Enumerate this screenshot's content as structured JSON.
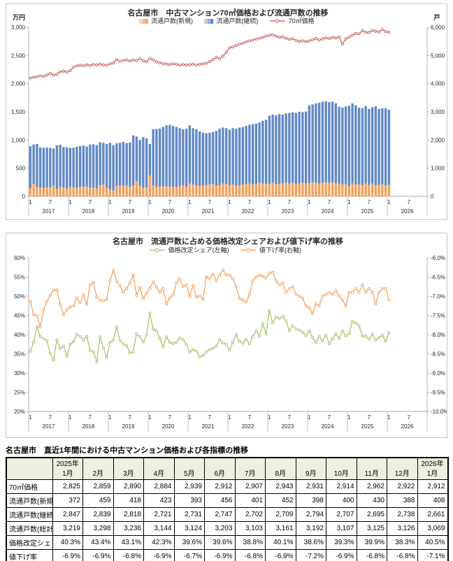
{
  "charts": [
    {
      "title": "名古屋市　中古マンション70㎡価格および流通戸数の推移",
      "legend": [
        {
          "label": "流通戸数(新規)",
          "color": "#F5A05A",
          "type": "bar"
        },
        {
          "label": "流通戸数(継続)",
          "color": "#6189C6",
          "type": "bar"
        },
        {
          "label": "70㎡価格",
          "color": "#C0504D",
          "type": "line"
        }
      ]
    },
    {
      "title": "名古屋市　流通戸数に占める価格改定シェアおよび値下げ率の推移",
      "legend": [
        {
          "label": "価格改定シェア(左軸)",
          "color": "#9BBB59",
          "type": "line"
        },
        {
          "label": "値下げ率(右軸)",
          "color": "#F79646",
          "type": "line"
        }
      ]
    }
  ],
  "chart_data": [
    {
      "type": "bar",
      "title": "名古屋市　中古マンション70㎡価格および流通戸数の推移",
      "x_start": "2017-01",
      "x_interval": "month",
      "x_years": [
        "2017",
        "2018",
        "2019",
        "2020",
        "2021",
        "2022",
        "2023",
        "2024",
        "2025",
        "2026"
      ],
      "x_month_ticks": [
        "1",
        "7"
      ],
      "left_axis": {
        "unit": "万円",
        "min": 0,
        "max": 3000,
        "step": 500,
        "format": "num"
      },
      "right_axis": {
        "unit": "戸",
        "min": 0,
        "max": 6000,
        "step": 1000,
        "format": "num"
      },
      "grid": false,
      "legend_position": "top",
      "series": [
        {
          "name": "流通戸数(新規)",
          "type": "bar",
          "stack": "units",
          "axis": "right",
          "color": "#F5A05A",
          "values": [
            300,
            438,
            330,
            308,
            298,
            312,
            322,
            378,
            262,
            340,
            318,
            282,
            336,
            318,
            298,
            338,
            330,
            348,
            298,
            312,
            288,
            398,
            418,
            302,
            242,
            202,
            358,
            378,
            362,
            380,
            338,
            382,
            540,
            378,
            302,
            318,
            738,
            382,
            338,
            358,
            342,
            362,
            352,
            338,
            332,
            362,
            378,
            342,
            458,
            418,
            378,
            362,
            378,
            398,
            418,
            438,
            382,
            398,
            458,
            438,
            398,
            418,
            382,
            398,
            418,
            438,
            458,
            418,
            438,
            478,
            458,
            438,
            438,
            478,
            422,
            438,
            458,
            478,
            458,
            478,
            438,
            458,
            478,
            458,
            462,
            498,
            478,
            458,
            478,
            498,
            478,
            498,
            462,
            438,
            422,
            438,
            372,
            459,
            418,
            423,
            393,
            456,
            401,
            452,
            398,
            400,
            430,
            388,
            408
          ]
        },
        {
          "name": "流通戸数(継続)",
          "type": "bar",
          "stack": "units",
          "axis": "right",
          "color": "#6189C6",
          "values": [
            1480,
            1402,
            1530,
            1422,
            1422,
            1418,
            1398,
            1322,
            1548,
            1490,
            1432,
            1458,
            1384,
            1412,
            1462,
            1452,
            1470,
            1422,
            1542,
            1538,
            1532,
            1522,
            1482,
            1558,
            1658,
            1618,
            1522,
            1522,
            1568,
            1510,
            1572,
            1778,
            1580,
            1622,
            1798,
            1742,
            1122,
            1998,
            2042,
            2042,
            2118,
            2158,
            2188,
            2162,
            2128,
            2058,
            2002,
            2058,
            2062,
            2002,
            2002,
            1938,
            1882,
            1842,
            1842,
            1842,
            1938,
            2002,
            1982,
            1982,
            1962,
            2002,
            2018,
            2042,
            2042,
            2062,
            2082,
            2142,
            2142,
            2142,
            2222,
            2282,
            2422,
            2422,
            2458,
            2482,
            2442,
            2462,
            2502,
            2502,
            2522,
            2542,
            2512,
            2552,
            2758,
            2762,
            2822,
            2862,
            2882,
            2872,
            2862,
            2862,
            2838,
            2742,
            2728,
            2752,
            2847,
            2839,
            2818,
            2721,
            2731,
            2747,
            2702,
            2709,
            2794,
            2707,
            2695,
            2738,
            2661
          ]
        },
        {
          "name": "70㎡価格",
          "type": "line",
          "axis": "left",
          "color": "#C0504D",
          "values": [
            2100,
            2112,
            2121,
            2138,
            2130,
            2155,
            2178,
            2152,
            2168,
            2210,
            2222,
            2205,
            2232,
            2290,
            2315,
            2328,
            2318,
            2332,
            2322,
            2340,
            2330,
            2345,
            2332,
            2328,
            2352,
            2366,
            2428,
            2398,
            2412,
            2420,
            2402,
            2418,
            2408,
            2442,
            2405,
            2388,
            2448,
            2420,
            2388,
            2368,
            2355,
            2345,
            2338,
            2352,
            2342,
            2328,
            2338,
            2332,
            2336,
            2344,
            2330,
            2342,
            2352,
            2362,
            2388,
            2428,
            2462,
            2442,
            2488,
            2558,
            2635,
            2652,
            2678,
            2702,
            2718,
            2742,
            2758,
            2772,
            2792,
            2805,
            2822,
            2845,
            2858,
            2868,
            2842,
            2822,
            2832,
            2805,
            2785,
            2795,
            2768,
            2748,
            2758,
            2742,
            2758,
            2778,
            2798,
            2775,
            2792,
            2812,
            2798,
            2822,
            2812,
            2832,
            2700,
            2792,
            2825,
            2859,
            2890,
            2884,
            2939,
            2912,
            2907,
            2943,
            2931,
            2914,
            2962,
            2922,
            2912
          ]
        }
      ]
    },
    {
      "type": "line",
      "title": "名古屋市　流通戸数に占める価格改定シェアおよび値下げ率の推移",
      "x_start": "2017-01",
      "x_interval": "month",
      "x_years": [
        "2017",
        "2018",
        "2019",
        "2020",
        "2021",
        "2022",
        "2023",
        "2024",
        "2025",
        "2026"
      ],
      "x_month_ticks": [
        "1",
        "7"
      ],
      "left_axis": {
        "unit": "",
        "min": 20,
        "max": 60,
        "step": 5,
        "format": "pct0"
      },
      "right_axis": {
        "unit": "",
        "min": -10,
        "max": -6,
        "step": 0.5,
        "format": "pct1"
      },
      "grid": false,
      "legend_position": "top",
      "series": [
        {
          "name": "価格改定シェア(左軸)",
          "type": "line",
          "axis": "left",
          "color": "#9BBB59",
          "values": [
            35.7,
            38.0,
            42.1,
            39.5,
            39.0,
            38.4,
            35.1,
            33.4,
            38.6,
            36.4,
            37.0,
            34.4,
            37.5,
            38.1,
            40.1,
            39.5,
            38.6,
            39.5,
            35.9,
            35.6,
            32.9,
            39.4,
            36.5,
            34.1,
            38.0,
            38.6,
            42.0,
            38.5,
            37.5,
            37.1,
            35.2,
            35.6,
            40.2,
            39.4,
            38.1,
            40.0,
            45.6,
            41.4,
            41.0,
            39.0,
            36.8,
            39.4,
            38.0,
            37.7,
            38.0,
            39.1,
            38.7,
            37.4,
            35.5,
            36.1,
            35.7,
            34.2,
            34.6,
            35.5,
            36.1,
            36.4,
            37.0,
            38.8,
            37.9,
            37.4,
            36.0,
            38.0,
            40.0,
            38.3,
            37.8,
            38.8,
            37.6,
            39.5,
            41.0,
            39.6,
            42.8,
            40.2,
            46.2,
            43.0,
            44.6,
            44.2,
            44.8,
            43.6,
            41.0,
            42.3,
            41.5,
            41.2,
            40.6,
            39.8,
            41.0,
            39.3,
            38.0,
            39.6,
            38.4,
            39.9,
            37.6,
            38.9,
            40.2,
            39.0,
            41.0,
            39.7,
            40.3,
            43.4,
            43.1,
            42.3,
            39.6,
            39.6,
            38.8,
            40.1,
            38.6,
            39.3,
            39.9,
            38.3,
            40.5
          ]
        },
        {
          "name": "値下げ率(右軸)",
          "type": "line",
          "axis": "right",
          "color": "#F79646",
          "values": [
            -7.14,
            -7.48,
            -7.5,
            -7.8,
            -7.35,
            -7.14,
            -6.97,
            -6.84,
            -6.83,
            -7.22,
            -7.48,
            -7.35,
            -7.28,
            -7.25,
            -7.04,
            -7.17,
            -6.97,
            -7.21,
            -6.7,
            -6.65,
            -7.02,
            -7.1,
            -7.12,
            -7.08,
            -6.6,
            -6.32,
            -6.6,
            -6.72,
            -6.9,
            -6.8,
            -6.65,
            -6.45,
            -6.98,
            -6.78,
            -7.06,
            -6.92,
            -6.8,
            -6.62,
            -6.76,
            -6.9,
            -6.8,
            -7.2,
            -7.04,
            -6.97,
            -6.65,
            -6.55,
            -6.75,
            -6.7,
            -7.0,
            -6.72,
            -7.02,
            -7.0,
            -7.08,
            -6.5,
            -6.55,
            -6.42,
            -6.6,
            -6.45,
            -6.32,
            -6.45,
            -6.45,
            -6.55,
            -6.75,
            -7.05,
            -7.1,
            -7.15,
            -6.95,
            -6.6,
            -6.5,
            -6.45,
            -6.48,
            -6.52,
            -6.4,
            -6.38,
            -6.6,
            -6.7,
            -6.65,
            -6.9,
            -6.8,
            -6.75,
            -6.95,
            -7.0,
            -7.05,
            -7.25,
            -7.3,
            -7.45,
            -7.2,
            -7.25,
            -7.0,
            -6.95,
            -6.9,
            -6.95,
            -6.85,
            -7.0,
            -7.1,
            -7.25,
            -6.9,
            -6.9,
            -6.8,
            -6.9,
            -6.7,
            -6.9,
            -6.8,
            -6.9,
            -7.2,
            -6.9,
            -6.8,
            -6.8,
            -7.1
          ]
        }
      ]
    }
  ],
  "table": {
    "title": "名古屋市　直近1年間における中古マンション価格および各指標の推移",
    "header_bg": "#EBF1DE",
    "col_headers": [
      [
        "2025年",
        "1月"
      ],
      [
        "",
        "2月"
      ],
      [
        "",
        "3月"
      ],
      [
        "",
        "4月"
      ],
      [
        "",
        "5月"
      ],
      [
        "",
        "6月"
      ],
      [
        "",
        "7月"
      ],
      [
        "",
        "8月"
      ],
      [
        "",
        "9月"
      ],
      [
        "",
        "10月"
      ],
      [
        "",
        "11月"
      ],
      [
        "",
        "12月"
      ],
      [
        "2026年",
        "1月"
      ]
    ],
    "rows": [
      {
        "label": "70㎡価格",
        "values": [
          "2,825",
          "2,859",
          "2,890",
          "2,884",
          "2,939",
          "2,912",
          "2,907",
          "2,943",
          "2,931",
          "2,914",
          "2,962",
          "2,922",
          "2,912"
        ]
      },
      {
        "label": "流通戸数(新規)",
        "values": [
          "372",
          "459",
          "418",
          "423",
          "393",
          "456",
          "401",
          "452",
          "398",
          "400",
          "430",
          "388",
          "408"
        ]
      },
      {
        "label": "流通戸数(継続)",
        "values": [
          "2,847",
          "2,839",
          "2,818",
          "2,721",
          "2,731",
          "2,747",
          "2,702",
          "2,709",
          "2,794",
          "2,707",
          "2,695",
          "2,738",
          "2,661"
        ]
      },
      {
        "label": "流通戸数(総計)",
        "values": [
          "3,219",
          "3,298",
          "3,236",
          "3,144",
          "3,124",
          "3,203",
          "3,103",
          "3,161",
          "3,192",
          "3,107",
          "3,125",
          "3,126",
          "3,069"
        ]
      },
      {
        "label": "価格改定シェア",
        "values": [
          "40.3%",
          "43.4%",
          "43.1%",
          "42.3%",
          "39.6%",
          "39.6%",
          "38.8%",
          "40.1%",
          "38.6%",
          "39.3%",
          "39.9%",
          "38.3%",
          "40.5%"
        ]
      },
      {
        "label": "値下げ率",
        "values": [
          "-6.9%",
          "-6.9%",
          "-6.8%",
          "-6.9%",
          "-6.7%",
          "-6.9%",
          "-6.8%",
          "-6.9%",
          "-7.2%",
          "-6.9%",
          "-6.8%",
          "-6.8%",
          "-7.1%"
        ]
      }
    ]
  }
}
